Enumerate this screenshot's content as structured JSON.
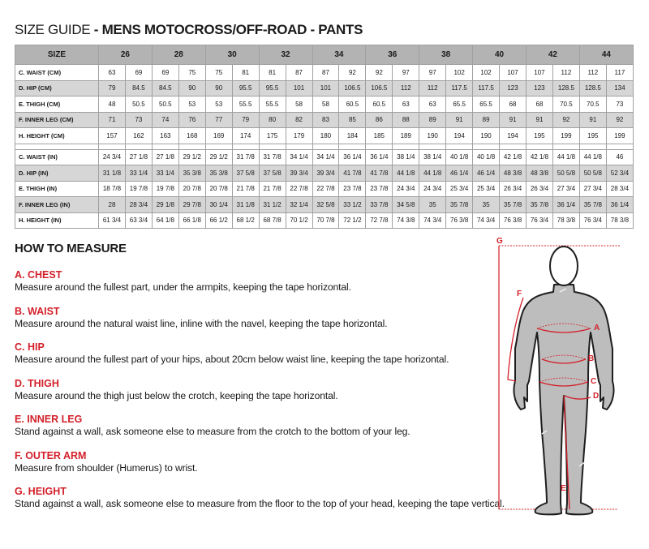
{
  "title": {
    "prefix": "SIZE GUIDE",
    "bold": " - MENS MOTOCROSS/OFF-ROAD - PANTS"
  },
  "table": {
    "size_header": "SIZE",
    "sizes": [
      "26",
      "28",
      "30",
      "32",
      "34",
      "36",
      "38",
      "40",
      "42",
      "44"
    ],
    "cm_rows": [
      {
        "label": "C. WAIST (CM)",
        "values": [
          "63",
          "69",
          "69",
          "75",
          "75",
          "81",
          "81",
          "87",
          "87",
          "92",
          "92",
          "97",
          "97",
          "102",
          "102",
          "107",
          "107",
          "112",
          "112",
          "117"
        ]
      },
      {
        "label": "D. HIP (CM)",
        "values": [
          "79",
          "84.5",
          "84.5",
          "90",
          "90",
          "95.5",
          "95.5",
          "101",
          "101",
          "106.5",
          "106.5",
          "112",
          "112",
          "117.5",
          "117.5",
          "123",
          "123",
          "128.5",
          "128.5",
          "134"
        ]
      },
      {
        "label": "E. THIGH (CM)",
        "values": [
          "48",
          "50.5",
          "50.5",
          "53",
          "53",
          "55.5",
          "55.5",
          "58",
          "58",
          "60.5",
          "60.5",
          "63",
          "63",
          "65.5",
          "65.5",
          "68",
          "68",
          "70.5",
          "70.5",
          "73"
        ]
      },
      {
        "label": "F. INNER LEG (CM)",
        "values": [
          "71",
          "73",
          "74",
          "76",
          "77",
          "79",
          "80",
          "82",
          "83",
          "85",
          "86",
          "88",
          "89",
          "91",
          "89",
          "91",
          "91",
          "92",
          "91",
          "92"
        ]
      },
      {
        "label": "H. HEIGHT (CM)",
        "values": [
          "157",
          "162",
          "163",
          "168",
          "169",
          "174",
          "175",
          "179",
          "180",
          "184",
          "185",
          "189",
          "190",
          "194",
          "190",
          "194",
          "195",
          "199",
          "195",
          "199"
        ]
      }
    ],
    "in_rows": [
      {
        "label": "C. WAIST (IN)",
        "values": [
          "24 3/4",
          "27 1/8",
          "27 1/8",
          "29 1/2",
          "29 1/2",
          "31 7/8",
          "31 7/8",
          "34 1/4",
          "34 1/4",
          "36 1/4",
          "36 1/4",
          "38 1/4",
          "38 1/4",
          "40 1/8",
          "40 1/8",
          "42 1/8",
          "42 1/8",
          "44 1/8",
          "44 1/8",
          "46"
        ]
      },
      {
        "label": "D. HIP (IN)",
        "values": [
          "31 1/8",
          "33 1/4",
          "33 1/4",
          "35 3/8",
          "35 3/8",
          "37 5/8",
          "37 5/8",
          "39 3/4",
          "39 3/4",
          "41 7/8",
          "41 7/8",
          "44 1/8",
          "44 1/8",
          "46 1/4",
          "46 1/4",
          "48 3/8",
          "48 3/8",
          "50 5/8",
          "50 5/8",
          "52 3/4"
        ]
      },
      {
        "label": "E. THIGH (IN)",
        "values": [
          "18 7/8",
          "19 7/8",
          "19 7/8",
          "20 7/8",
          "20 7/8",
          "21 7/8",
          "21 7/8",
          "22 7/8",
          "22 7/8",
          "23 7/8",
          "23 7/8",
          "24 3/4",
          "24 3/4",
          "25 3/4",
          "25 3/4",
          "26 3/4",
          "26 3/4",
          "27 3/4",
          "27 3/4",
          "28 3/4"
        ]
      },
      {
        "label": "F. INNER LEG (IN)",
        "values": [
          "28",
          "28 3/4",
          "29 1/8",
          "29 7/8",
          "30 1/4",
          "31 1/8",
          "31 1/2",
          "32 1/4",
          "32 5/8",
          "33 1/2",
          "33 7/8",
          "34 5/8",
          "35",
          "35 7/8",
          "35",
          "35 7/8",
          "35 7/8",
          "36 1/4",
          "35 7/8",
          "36 1/4"
        ]
      },
      {
        "label": "H. HEIGHT (IN)",
        "values": [
          "61 3/4",
          "63 3/4",
          "64 1/8",
          "66 1/8",
          "66 1/2",
          "68 1/2",
          "68 7/8",
          "70 1/2",
          "70 7/8",
          "72 1/2",
          "72 7/8",
          "74 3/8",
          "74 3/4",
          "76 3/8",
          "74 3/4",
          "76 3/8",
          "76 3/4",
          "78 3/8",
          "76 3/4",
          "78 3/8"
        ]
      }
    ]
  },
  "how_to_measure": {
    "heading": "HOW TO MEASURE",
    "items": [
      {
        "title": "A. CHEST",
        "text": "Measure around the fullest part, under the armpits, keeping the tape horizontal."
      },
      {
        "title": "B. WAIST",
        "text": "Measure around the natural waist line, inline with the navel, keeping the tape horizontal."
      },
      {
        "title": "C. HIP",
        "text": "Measure around the fullest part of your hips, about 20cm below waist line, keeping the tape horizontal."
      },
      {
        "title": "D. THIGH",
        "text": "Measure around the thigh just below the crotch, keeping the tape horizontal."
      },
      {
        "title": "E. INNER LEG",
        "text": "Stand against a wall, ask someone else to measure from the crotch to the bottom of your leg."
      },
      {
        "title": "F. OUTER ARM",
        "text": "Measure from shoulder (Humerus) to wrist."
      },
      {
        "title": "G. HEIGHT",
        "text": "Stand against a wall, ask someone else to measure from the floor to the top of your head, keeping the tape vertical."
      }
    ]
  },
  "figure": {
    "labels": {
      "a": "A",
      "b": "B",
      "c": "C",
      "d": "D",
      "e": "E",
      "f": "F",
      "g": "G"
    },
    "accent_color": "#d3202a",
    "suit_color": "#bdbdbd"
  }
}
